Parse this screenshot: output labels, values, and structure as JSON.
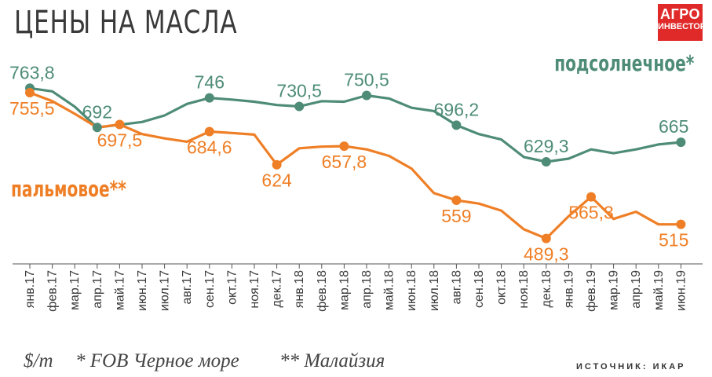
{
  "header": {
    "title": "ЦЕНЫ НА МАСЛА",
    "logo_line1": "АГРО",
    "logo_line2": "ИНВЕСТОР"
  },
  "legend": {
    "sunflower": "подсолнечное*",
    "palm": "пальмовое**"
  },
  "footer": {
    "unit": "$/m",
    "note1": "* FOB Черное море",
    "note2": "** Малайзия",
    "source": "ИСТОЧНИК: ИКАР"
  },
  "colors": {
    "sunflower": "#4e8c78",
    "palm": "#ef7f26",
    "axis": "#555555",
    "text": "#3a3a3a"
  },
  "chart_data": {
    "type": "line",
    "title": "ЦЕНЫ НА МАСЛА",
    "xlabel": "",
    "ylabel": "",
    "ylim": [
      460,
      790
    ],
    "grid": false,
    "categories": [
      "янв.17",
      "фев.17",
      "мар.17",
      "апр.17",
      "май.17",
      "июн.17",
      "июл.17",
      "авг.17",
      "сен.17",
      "окт.17",
      "ноя.17",
      "дек.17",
      "янв.18",
      "фев.18",
      "мар.18",
      "апр.18",
      "май.18",
      "июн.18",
      "июл.18",
      "авг.18",
      "сен.18",
      "окт.18",
      "ноя.18",
      "дек.18",
      "янв.19",
      "фев.19",
      "мар.19",
      "апр.19",
      "май.19",
      "июн.19"
    ],
    "series": [
      {
        "name": "подсолнечное*",
        "color": "#4e8c78",
        "values": [
          763.8,
          758,
          730,
          692,
          697,
          702,
          714,
          735,
          746,
          743,
          739,
          733,
          730.5,
          740,
          739,
          750.5,
          745,
          728,
          722,
          696.2,
          680,
          670,
          638,
          629.3,
          635,
          652,
          645,
          652,
          661,
          665
        ],
        "labels": [
          {
            "index": 0,
            "text": "763,8",
            "pos": "above"
          },
          {
            "index": 3,
            "text": "692",
            "pos": "above"
          },
          {
            "index": 8,
            "text": "746",
            "pos": "above"
          },
          {
            "index": 12,
            "text": "730,5",
            "pos": "above"
          },
          {
            "index": 15,
            "text": "750,5",
            "pos": "above"
          },
          {
            "index": 19,
            "text": "696,2",
            "pos": "above"
          },
          {
            "index": 23,
            "text": "629,3",
            "pos": "above"
          },
          {
            "index": 29,
            "text": "665",
            "pos": "above"
          }
        ]
      },
      {
        "name": "пальмовое**",
        "color": "#ef7f26",
        "values": [
          755.5,
          740,
          717,
          692,
          697.5,
          680,
          672,
          666,
          684.6,
          682,
          679,
          624,
          654,
          657,
          657.8,
          652,
          640,
          617,
          572,
          559,
          553,
          540,
          506,
          489.3,
          530,
          565.3,
          525,
          538,
          515,
          515
        ],
        "labels": [
          {
            "index": 0,
            "text": "755,5",
            "pos": "below"
          },
          {
            "index": 4,
            "text": "697,5",
            "pos": "below"
          },
          {
            "index": 8,
            "text": "684,6",
            "pos": "below"
          },
          {
            "index": 11,
            "text": "624",
            "pos": "below"
          },
          {
            "index": 14,
            "text": "657,8",
            "pos": "below"
          },
          {
            "index": 19,
            "text": "559",
            "pos": "below"
          },
          {
            "index": 23,
            "text": "489,3",
            "pos": "below"
          },
          {
            "index": 25,
            "text": "565,3",
            "pos": "below"
          },
          {
            "index": 29,
            "text": "515",
            "pos": "below"
          }
        ]
      }
    ]
  }
}
